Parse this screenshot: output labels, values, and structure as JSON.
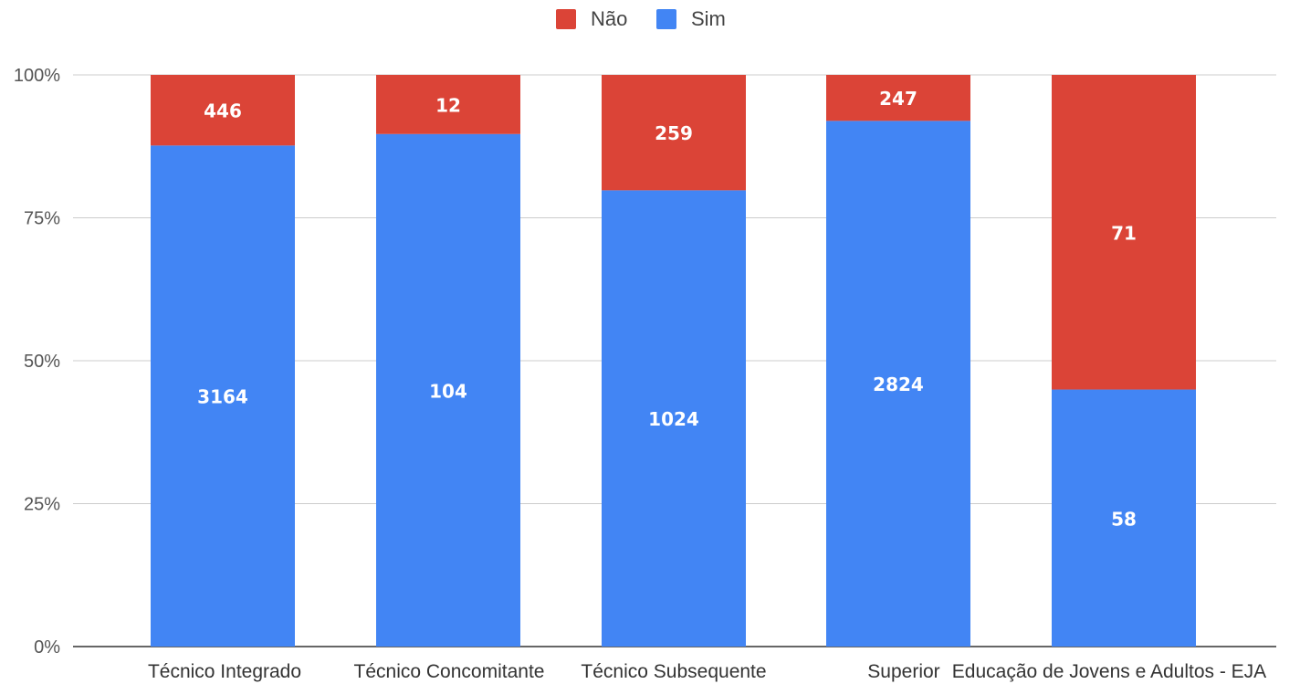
{
  "chart_data": {
    "type": "bar",
    "stacked": "percent",
    "title": "",
    "xlabel": "",
    "ylabel": "",
    "ylim": [
      0,
      100
    ],
    "yticks": [
      "0%",
      "25%",
      "50%",
      "75%",
      "100%"
    ],
    "grid": true,
    "legend_position": "top-center",
    "categories": [
      "Técnico Integrado",
      "Técnico Concomitante",
      "Técnico Subsequente",
      "Superior",
      "Educação de Jovens e Adultos - EJA"
    ],
    "series": [
      {
        "name": "Sim",
        "color": "#4285f4",
        "values": [
          3164,
          104,
          1024,
          2824,
          58
        ]
      },
      {
        "name": "Não",
        "color": "#db4437",
        "values": [
          446,
          12,
          259,
          247,
          71
        ]
      }
    ],
    "legend_order": [
      "Não",
      "Sim"
    ]
  }
}
